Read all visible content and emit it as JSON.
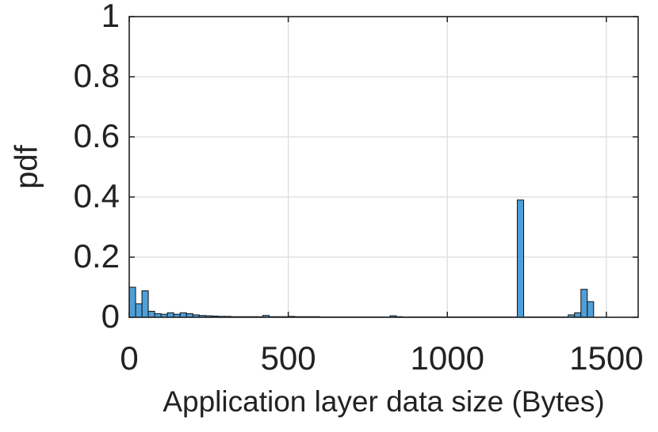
{
  "chart_data": {
    "type": "histogram",
    "xlabel": "Application layer data size (Bytes)",
    "ylabel": "pdf",
    "bins": [
      0,
      20,
      40,
      60,
      80,
      100,
      120,
      140,
      160,
      180,
      200,
      220,
      240,
      260,
      280,
      300,
      320,
      340,
      360,
      380,
      400,
      420,
      440,
      460,
      480,
      500,
      520,
      540,
      560,
      580,
      600,
      620,
      640,
      660,
      680,
      700,
      720,
      740,
      760,
      780,
      800,
      820,
      840,
      860,
      880,
      900,
      920,
      940,
      960,
      980,
      1000,
      1020,
      1040,
      1060,
      1080,
      1100,
      1120,
      1140,
      1160,
      1180,
      1200,
      1220,
      1240,
      1260,
      1280,
      1300,
      1320,
      1340,
      1360,
      1380,
      1400,
      1420,
      1440,
      1460,
      1480,
      1500,
      1520,
      1540,
      1560,
      1580,
      1600
    ],
    "values": [
      0.1,
      0.045,
      0.088,
      0.02,
      0.012,
      0.01,
      0.015,
      0.01,
      0.015,
      0.012,
      0.008,
      0.006,
      0.005,
      0.004,
      0.003,
      0.003,
      0.002,
      0.002,
      0.002,
      0.002,
      0.002,
      0.006,
      0.002,
      0.002,
      0.002,
      0.003,
      0.002,
      0.002,
      0.002,
      0.002,
      0.001,
      0.001,
      0.001,
      0.001,
      0.001,
      0.001,
      0.001,
      0.001,
      0.001,
      0.001,
      0.001,
      0.005,
      0.002,
      0.001,
      0.001,
      0.001,
      0.001,
      0.001,
      0.001,
      0.001,
      0.001,
      0.001,
      0.001,
      0.001,
      0.001,
      0.001,
      0.001,
      0.001,
      0.001,
      0.001,
      0.001,
      0.39,
      0.001,
      0.001,
      0.001,
      0.001,
      0.001,
      0.001,
      0.001,
      0.008,
      0.015,
      0.093,
      0.052,
      0,
      0,
      0,
      0,
      0,
      0,
      0
    ],
    "color": "#4f9fd8",
    "xlim": [
      0,
      1600
    ],
    "ylim": [
      0,
      1
    ],
    "xticks": [
      0,
      500,
      1000,
      1500
    ],
    "yticks": [
      0,
      0.2,
      0.4,
      0.6,
      0.8,
      1
    ],
    "grid": true
  }
}
